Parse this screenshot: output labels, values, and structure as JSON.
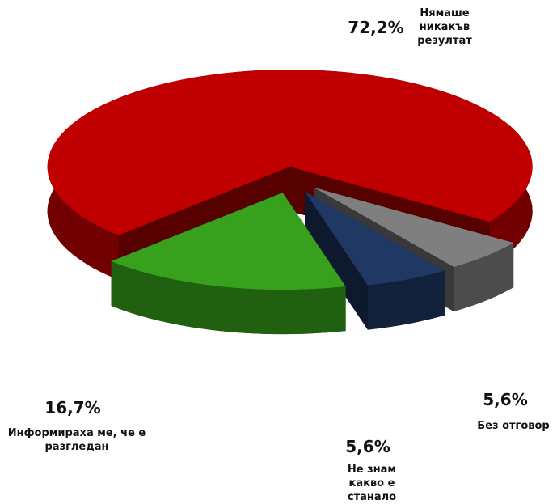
{
  "chart_data": {
    "type": "pie3d",
    "categories": [
      "Нямаше никакъв резултат",
      "Без отговор",
      "Не знам какво е станало",
      "Информираха ме, че е разгледан"
    ],
    "values": [
      72.2,
      5.6,
      5.6,
      16.7
    ],
    "value_labels": [
      "72,2%",
      "5,6%",
      "5,6%",
      "16,7%"
    ],
    "colors": [
      "#c00000",
      "#7f7f7f",
      "#1f3864",
      "#37a01c"
    ]
  }
}
